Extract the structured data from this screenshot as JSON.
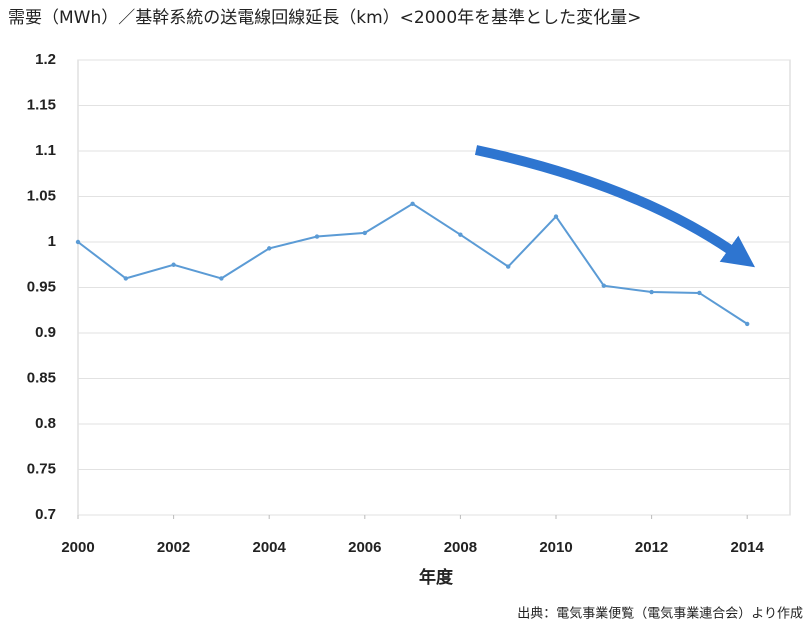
{
  "chart_data": {
    "type": "line",
    "title": "需要（MWh）／基幹系統の送電線回線延長（km）<2000年を基準とした変化量>",
    "x_label": "年度",
    "source": "出典：電気事業便覧（電気事業連合会）より作成",
    "x": [
      2000,
      2001,
      2002,
      2003,
      2004,
      2005,
      2006,
      2007,
      2008,
      2009,
      2010,
      2011,
      2012,
      2013,
      2014
    ],
    "values": [
      1.0,
      0.96,
      0.975,
      0.96,
      0.993,
      1.006,
      1.01,
      1.042,
      1.008,
      0.973,
      1.028,
      0.952,
      0.945,
      0.944,
      0.91
    ],
    "color": "#5b9bd5",
    "xlim": [
      2000,
      2015
    ],
    "xticks": [
      2000,
      2002,
      2004,
      2006,
      2008,
      2010,
      2012,
      2014
    ],
    "ylim": [
      0.7,
      1.2
    ],
    "yticks": [
      0.7,
      0.75,
      0.8,
      0.85,
      0.9,
      0.95,
      1,
      1.05,
      1.1,
      1.15,
      1.2
    ],
    "grid": true
  }
}
